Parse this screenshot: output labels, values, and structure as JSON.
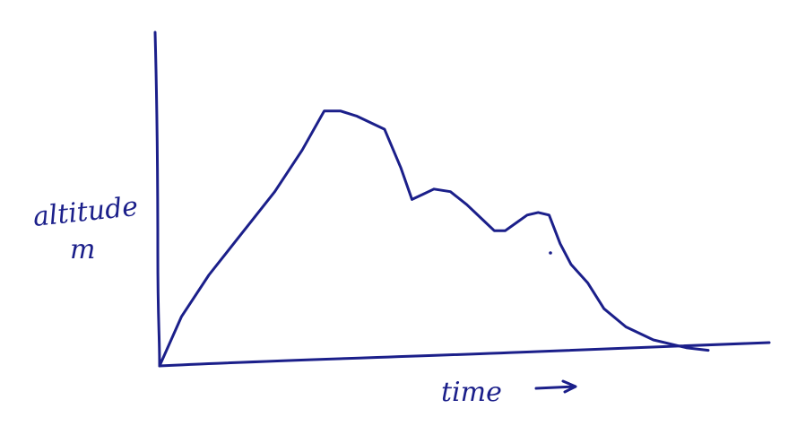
{
  "chart_data": {
    "type": "line",
    "title": "",
    "xlabel": "time",
    "ylabel_line1": "altitude",
    "ylabel_line2": "m",
    "x_arrow": "→",
    "xlim": [
      0,
      100
    ],
    "ylim": [
      0,
      100
    ],
    "grid": false,
    "ink_color": "#1b1f8a",
    "series": [
      {
        "x": [
          0,
          4,
          9,
          15,
          21,
          26,
          30,
          33,
          36,
          41,
          44,
          46,
          48,
          50,
          53,
          56,
          59,
          61,
          63,
          65,
          67,
          69,
          71,
          73,
          75,
          78,
          81,
          85,
          90,
          96,
          100
        ],
        "y": [
          0,
          19,
          35,
          51,
          67,
          83,
          98,
          98,
          96,
          91,
          76,
          64,
          66,
          68,
          67,
          62,
          56,
          52,
          52,
          55,
          58,
          59,
          58,
          47,
          39,
          32,
          22,
          15,
          10,
          7,
          6
        ]
      }
    ]
  }
}
